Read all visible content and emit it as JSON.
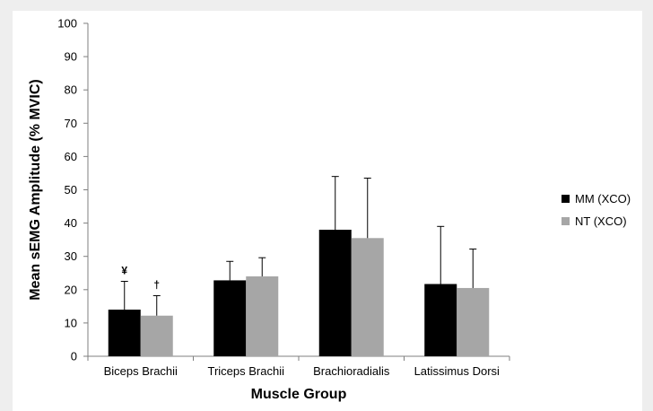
{
  "chart_data": {
    "type": "bar",
    "title": "",
    "xlabel": "Muscle Group",
    "ylabel": "Mean sEMG Amplitude (% MVIC)",
    "ylim": [
      0,
      100
    ],
    "yticks": [
      "0",
      "10",
      "20",
      "30",
      "40",
      "50",
      "60",
      "70",
      "80",
      "90",
      "100"
    ],
    "categories": [
      "Biceps Brachii",
      "Triceps Brachii",
      "Brachioradialis",
      "Latissimus  Dorsi"
    ],
    "series": [
      {
        "name": "MM (XCO)",
        "color": "#000000",
        "values": [
          14,
          22.8,
          38,
          21.7
        ],
        "error": [
          8.5,
          5.7,
          16,
          17.3
        ],
        "annotations": [
          "¥",
          "",
          "",
          ""
        ]
      },
      {
        "name": "NT (XCO)",
        "color": "#a6a6a6",
        "values": [
          12.2,
          24,
          35.5,
          20.5
        ],
        "error": [
          6,
          5.6,
          18,
          11.7
        ],
        "annotations": [
          "†",
          "",
          "",
          ""
        ]
      }
    ],
    "grid": false,
    "legend_position": "right"
  }
}
